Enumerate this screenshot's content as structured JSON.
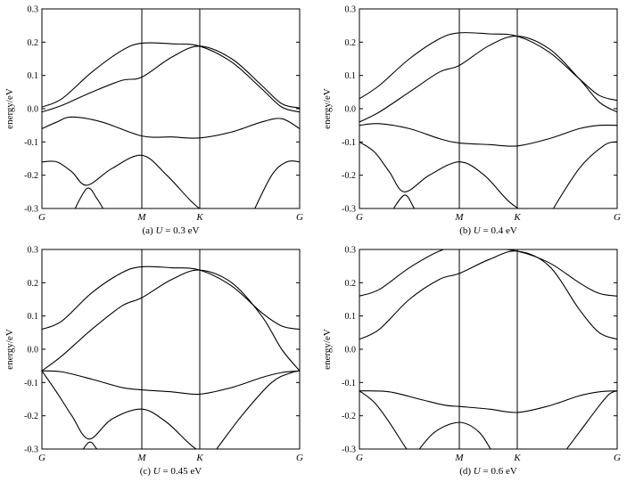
{
  "chart_data": [
    {
      "type": "line",
      "caption": {
        "prefix": "(a)",
        "var": "U",
        "rest": "= 0.3 eV"
      },
      "ylabel": "energy/eV",
      "ylim": [
        -0.3,
        0.3
      ],
      "y_ticks": [
        "0.3",
        "0.2",
        "0.1",
        "0.0",
        "-0.1",
        "-0.2",
        "-0.3"
      ],
      "k_labels": [
        "G",
        "M",
        "K",
        "G"
      ],
      "k_positions": [
        0,
        1,
        1.58,
        2.58
      ],
      "bands": [
        {
          "x": [
            0,
            0.2,
            0.5,
            0.8,
            1.0,
            1.3,
            1.58,
            1.9,
            2.2,
            2.4,
            2.58
          ],
          "y": [
            0.005,
            0.03,
            0.11,
            0.175,
            0.197,
            0.195,
            0.188,
            0.14,
            0.06,
            0.005,
            -0.01
          ]
        },
        {
          "x": [
            0,
            0.2,
            0.5,
            0.8,
            1.0,
            1.3,
            1.58,
            1.9,
            2.2,
            2.4,
            2.58
          ],
          "y": [
            -0.01,
            0.01,
            0.05,
            0.085,
            0.095,
            0.155,
            0.188,
            0.15,
            0.07,
            0.015,
            0.002
          ]
        },
        {
          "x": [
            0,
            0.15,
            0.3,
            0.6,
            1.0,
            1.3,
            1.58,
            1.9,
            2.2,
            2.4,
            2.58
          ],
          "y": [
            -0.06,
            -0.04,
            -0.025,
            -0.04,
            -0.082,
            -0.085,
            -0.088,
            -0.07,
            -0.04,
            -0.03,
            -0.06
          ]
        },
        {
          "x": [
            0,
            0.15,
            0.3,
            0.45,
            0.7,
            1.0,
            1.25,
            1.5,
            1.7
          ],
          "y": [
            -0.16,
            -0.16,
            -0.19,
            -0.23,
            -0.18,
            -0.14,
            -0.2,
            -0.28,
            -0.33
          ]
        },
        {
          "x": [
            0.3,
            0.45,
            0.55,
            0.63
          ],
          "y": [
            -0.32,
            -0.24,
            -0.27,
            -0.31
          ]
        },
        {
          "x": [
            2.1,
            2.3,
            2.45,
            2.58
          ],
          "y": [
            -0.32,
            -0.2,
            -0.16,
            -0.16
          ]
        }
      ]
    },
    {
      "type": "line",
      "caption": {
        "prefix": "(b)",
        "var": "U",
        "rest": "= 0.4 eV"
      },
      "ylabel": "energy/eV",
      "ylim": [
        -0.3,
        0.3
      ],
      "y_ticks": [
        "0.3",
        "0.2",
        "0.1",
        "0.0",
        "-0.1",
        "-0.2",
        "-0.3"
      ],
      "k_labels": [
        "G",
        "M",
        "K",
        "G"
      ],
      "k_positions": [
        0,
        1,
        1.58,
        2.58
      ],
      "bands": [
        {
          "x": [
            0,
            0.2,
            0.5,
            0.8,
            1.0,
            1.3,
            1.58,
            1.9,
            2.2,
            2.4,
            2.58
          ],
          "y": [
            0.03,
            0.07,
            0.15,
            0.21,
            0.228,
            0.225,
            0.218,
            0.17,
            0.09,
            0.04,
            0.025
          ]
        },
        {
          "x": [
            0,
            0.2,
            0.5,
            0.8,
            1.0,
            1.3,
            1.58,
            1.9,
            2.2,
            2.4,
            2.58
          ],
          "y": [
            -0.04,
            -0.01,
            0.05,
            0.11,
            0.13,
            0.19,
            0.218,
            0.18,
            0.09,
            0.02,
            -0.01
          ]
        },
        {
          "x": [
            0,
            0.2,
            0.5,
            0.8,
            1.0,
            1.3,
            1.58,
            1.9,
            2.2,
            2.4,
            2.58
          ],
          "y": [
            -0.05,
            -0.045,
            -0.06,
            -0.09,
            -0.103,
            -0.108,
            -0.112,
            -0.09,
            -0.06,
            -0.05,
            -0.05
          ]
        },
        {
          "x": [
            0,
            0.15,
            0.3,
            0.45,
            0.7,
            1.0,
            1.25,
            1.5,
            1.75
          ],
          "y": [
            -0.1,
            -0.13,
            -0.19,
            -0.25,
            -0.2,
            -0.16,
            -0.2,
            -0.28,
            -0.33
          ]
        },
        {
          "x": [
            0.3,
            0.45,
            0.55,
            0.63
          ],
          "y": [
            -0.32,
            -0.26,
            -0.3,
            -0.33
          ]
        },
        {
          "x": [
            1.9,
            2.2,
            2.45,
            2.58
          ],
          "y": [
            -0.32,
            -0.18,
            -0.11,
            -0.1
          ]
        }
      ]
    },
    {
      "type": "line",
      "caption": {
        "prefix": "(c)",
        "var": "U",
        "rest": "= 0.45 eV"
      },
      "ylabel": "energy/eV",
      "ylim": [
        -0.3,
        0.3
      ],
      "y_ticks": [
        "0.3",
        "0.2",
        "0.1",
        "0.0",
        "-0.1",
        "-0.2",
        "-0.3"
      ],
      "k_labels": [
        "G",
        "M",
        "K",
        "G"
      ],
      "k_positions": [
        0,
        1,
        1.58,
        2.58
      ],
      "bands": [
        {
          "x": [
            0,
            0.2,
            0.5,
            0.8,
            1.0,
            1.3,
            1.58,
            1.9,
            2.2,
            2.4,
            2.58
          ],
          "y": [
            0.06,
            0.085,
            0.17,
            0.23,
            0.248,
            0.245,
            0.238,
            0.19,
            0.11,
            0.07,
            0.06
          ]
        },
        {
          "x": [
            0,
            0.2,
            0.5,
            0.8,
            1.0,
            1.3,
            1.58,
            1.9,
            2.2,
            2.4,
            2.58
          ],
          "y": [
            -0.065,
            -0.02,
            0.06,
            0.13,
            0.155,
            0.21,
            0.238,
            0.2,
            0.1,
            0.0,
            -0.065
          ]
        },
        {
          "x": [
            0,
            0.2,
            0.5,
            0.8,
            1.0,
            1.3,
            1.58,
            1.9,
            2.2,
            2.4,
            2.58
          ],
          "y": [
            -0.065,
            -0.068,
            -0.09,
            -0.115,
            -0.122,
            -0.128,
            -0.135,
            -0.115,
            -0.085,
            -0.07,
            -0.065
          ]
        },
        {
          "x": [
            0,
            0.15,
            0.3,
            0.47,
            0.7,
            1.0,
            1.25,
            1.5,
            1.75
          ],
          "y": [
            -0.065,
            -0.13,
            -0.2,
            -0.27,
            -0.21,
            -0.18,
            -0.22,
            -0.29,
            -0.34
          ]
        },
        {
          "x": [
            0.35,
            0.47,
            0.55,
            0.65
          ],
          "y": [
            -0.33,
            -0.28,
            -0.3,
            -0.34
          ]
        },
        {
          "x": [
            1.7,
            2.0,
            2.3,
            2.5,
            2.58
          ],
          "y": [
            -0.32,
            -0.2,
            -0.1,
            -0.07,
            -0.065
          ]
        }
      ]
    },
    {
      "type": "line",
      "caption": {
        "prefix": "(d)",
        "var": "U",
        "rest": "= 0.6 eV"
      },
      "ylabel": "energy/eV",
      "ylim": [
        -0.3,
        0.3
      ],
      "y_ticks": [
        "0.3",
        "0.2",
        "0.1",
        "0.0",
        "-0.1",
        "-0.2",
        "-0.3"
      ],
      "k_labels": [
        "G",
        "M",
        "K",
        "G"
      ],
      "k_positions": [
        0,
        1,
        1.58,
        2.58
      ],
      "bands": [
        {
          "x": [
            0,
            0.2,
            0.5,
            0.8,
            1.0,
            1.3,
            1.58,
            1.9,
            2.2,
            2.4,
            2.58
          ],
          "y": [
            0.16,
            0.18,
            0.245,
            0.295,
            0.308,
            0.303,
            0.295,
            0.26,
            0.2,
            0.168,
            0.16
          ]
        },
        {
          "x": [
            0,
            0.2,
            0.5,
            0.8,
            1.0,
            1.3,
            1.58,
            1.9,
            2.2,
            2.4,
            2.58
          ],
          "y": [
            0.03,
            0.06,
            0.15,
            0.21,
            0.228,
            0.27,
            0.295,
            0.25,
            0.12,
            0.05,
            0.03
          ]
        },
        {
          "x": [
            0,
            0.3,
            0.6,
            0.85,
            1.0,
            1.3,
            1.58,
            1.9,
            2.2,
            2.4,
            2.58
          ],
          "y": [
            -0.125,
            -0.128,
            -0.15,
            -0.168,
            -0.172,
            -0.18,
            -0.19,
            -0.17,
            -0.14,
            -0.128,
            -0.125
          ]
        },
        {
          "x": [
            0,
            0.15,
            0.3,
            0.45,
            0.55
          ],
          "y": [
            -0.125,
            -0.16,
            -0.22,
            -0.29,
            -0.33
          ]
        },
        {
          "x": [
            0.55,
            0.75,
            1.0,
            1.2,
            1.35
          ],
          "y": [
            -0.32,
            -0.25,
            -0.22,
            -0.25,
            -0.32
          ]
        },
        {
          "x": [
            2.0,
            2.2,
            2.4,
            2.5,
            2.58
          ],
          "y": [
            -0.33,
            -0.25,
            -0.17,
            -0.135,
            -0.125
          ]
        }
      ]
    }
  ]
}
